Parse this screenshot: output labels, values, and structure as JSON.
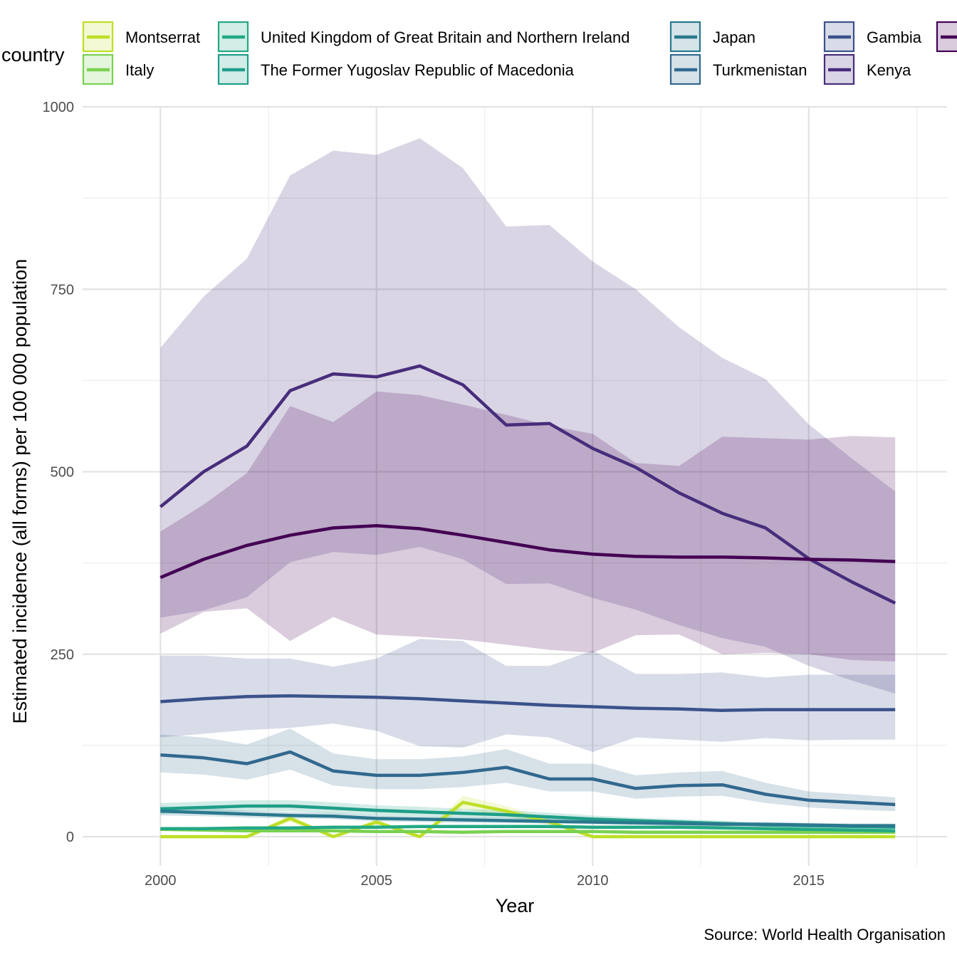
{
  "chart_data": {
    "type": "line",
    "xlabel": "Year",
    "ylabel": "Estimated incidence (all forms) per 100 000 population",
    "caption": "Source: World Health Organisation",
    "legend_title": "country",
    "legend_position": "top",
    "grid": true,
    "xlim": [
      1998.2,
      2018.2
    ],
    "ylim": [
      -40,
      1000
    ],
    "x_ticks": [
      2000,
      2005,
      2010,
      2015
    ],
    "y_ticks": [
      0,
      250,
      500,
      750,
      1000
    ],
    "x": [
      2000,
      2001,
      2002,
      2003,
      2004,
      2005,
      2006,
      2007,
      2008,
      2009,
      2010,
      2011,
      2012,
      2013,
      2014,
      2015,
      2016,
      2017
    ],
    "series": [
      {
        "name": "Montserrat",
        "color": "#bddf26",
        "values": [
          0,
          0,
          0,
          25,
          0,
          20,
          0,
          47,
          35,
          20,
          0,
          0,
          0,
          0,
          0,
          0,
          0,
          0
        ],
        "lo": [
          0,
          0,
          0,
          20,
          0,
          16,
          0,
          38,
          28,
          16,
          0,
          0,
          0,
          0,
          0,
          0,
          0,
          0
        ],
        "hi": [
          0,
          0,
          0,
          30,
          0,
          24,
          0,
          56,
          42,
          24,
          0,
          0,
          0,
          0,
          0,
          0,
          0,
          0
        ]
      },
      {
        "name": "Italy",
        "color": "#7ad151",
        "values": [
          10,
          9,
          8,
          8,
          8,
          7,
          7,
          6,
          7,
          7,
          7,
          6,
          6,
          6,
          6,
          6,
          6,
          6
        ],
        "lo": [
          8,
          7,
          7,
          7,
          7,
          6,
          6,
          5,
          6,
          6,
          6,
          5,
          5,
          5,
          5,
          5,
          5,
          5
        ],
        "hi": [
          12,
          11,
          10,
          10,
          10,
          9,
          9,
          8,
          8,
          8,
          8,
          7,
          7,
          7,
          7,
          7,
          7,
          7
        ]
      },
      {
        "name": "United Kingdom of Great Britain and Northern Ireland",
        "color": "#22a884",
        "values": [
          11,
          11,
          12,
          12,
          13,
          13,
          14,
          14,
          14,
          14,
          13,
          13,
          13,
          12,
          11,
          10,
          9,
          8
        ],
        "lo": [
          10,
          10,
          11,
          11,
          12,
          12,
          13,
          13,
          13,
          13,
          12,
          12,
          12,
          11,
          10,
          9,
          8,
          7
        ],
        "hi": [
          13,
          13,
          14,
          14,
          15,
          15,
          16,
          16,
          16,
          16,
          15,
          15,
          14,
          13,
          12,
          11,
          10,
          9
        ]
      },
      {
        "name": "The Former Yugoslav Republic of Macedonia",
        "color": "#1f9e89",
        "values": [
          38,
          40,
          42,
          42,
          39,
          36,
          34,
          32,
          30,
          27,
          24,
          22,
          20,
          18,
          16,
          15,
          14,
          13
        ],
        "lo": [
          31,
          33,
          35,
          35,
          32,
          29,
          28,
          26,
          25,
          22,
          20,
          18,
          16,
          15,
          13,
          12,
          11,
          11
        ],
        "hi": [
          46,
          48,
          50,
          50,
          47,
          43,
          41,
          38,
          36,
          33,
          29,
          26,
          24,
          22,
          19,
          18,
          17,
          16
        ]
      },
      {
        "name": "Japan",
        "color": "#2a788e",
        "values": [
          35,
          33,
          31,
          29,
          28,
          25,
          24,
          23,
          22,
          21,
          20,
          19,
          18,
          17,
          17,
          16,
          15,
          15
        ],
        "lo": [
          29,
          28,
          26,
          25,
          24,
          21,
          20,
          19,
          19,
          18,
          17,
          16,
          15,
          14,
          14,
          14,
          13,
          13
        ],
        "hi": [
          41,
          39,
          36,
          34,
          33,
          29,
          28,
          27,
          26,
          25,
          24,
          22,
          21,
          20,
          20,
          19,
          18,
          18
        ]
      },
      {
        "name": "Turkmenistan",
        "color": "#31688e",
        "values": [
          112,
          108,
          100,
          116,
          90,
          84,
          84,
          88,
          95,
          79,
          79,
          66,
          70,
          71,
          58,
          50,
          47,
          44
        ],
        "lo": [
          88,
          85,
          78,
          92,
          70,
          65,
          65,
          68,
          74,
          62,
          62,
          52,
          55,
          56,
          46,
          40,
          37,
          35
        ],
        "hi": [
          140,
          136,
          126,
          148,
          114,
          106,
          106,
          110,
          120,
          100,
          100,
          84,
          88,
          90,
          74,
          62,
          58,
          54
        ]
      },
      {
        "name": "Gambia",
        "color": "#3b528b",
        "values": [
          185,
          189,
          192,
          193,
          192,
          191,
          189,
          186,
          183,
          180,
          178,
          176,
          175,
          173,
          174,
          174,
          174,
          174
        ],
        "lo": [
          136,
          141,
          146,
          149,
          155,
          145,
          124,
          122,
          140,
          136,
          116,
          136,
          133,
          130,
          135,
          132,
          133,
          133
        ],
        "hi": [
          248,
          248,
          244,
          244,
          233,
          244,
          271,
          268,
          234,
          234,
          255,
          223,
          223,
          225,
          218,
          222,
          222,
          222
        ]
      },
      {
        "name": "Kenya",
        "color": "#472d7b",
        "values": [
          452,
          500,
          535,
          611,
          634,
          630,
          645,
          619,
          564,
          566,
          532,
          506,
          471,
          443,
          423,
          381,
          349,
          320
        ],
        "lo": [
          300,
          310,
          328,
          376,
          390,
          386,
          397,
          380,
          346,
          347,
          327,
          311,
          290,
          272,
          260,
          234,
          214,
          196
        ],
        "hi": [
          670,
          740,
          792,
          906,
          940,
          934,
          957,
          916,
          836,
          838,
          788,
          750,
          698,
          656,
          627,
          565,
          518,
          473
        ]
      },
      {
        "name": "",
        "color": "#440154",
        "values": [
          355,
          380,
          399,
          413,
          423,
          426,
          422,
          413,
          403,
          393,
          387,
          384,
          383,
          383,
          382,
          380,
          379,
          377
        ],
        "lo": [
          278,
          308,
          313,
          268,
          301,
          277,
          274,
          270,
          263,
          256,
          252,
          276,
          277,
          250,
          252,
          250,
          242,
          240
        ],
        "hi": [
          418,
          455,
          498,
          590,
          568,
          610,
          605,
          592,
          578,
          563,
          552,
          512,
          508,
          548,
          546,
          544,
          549,
          547
        ]
      }
    ]
  }
}
